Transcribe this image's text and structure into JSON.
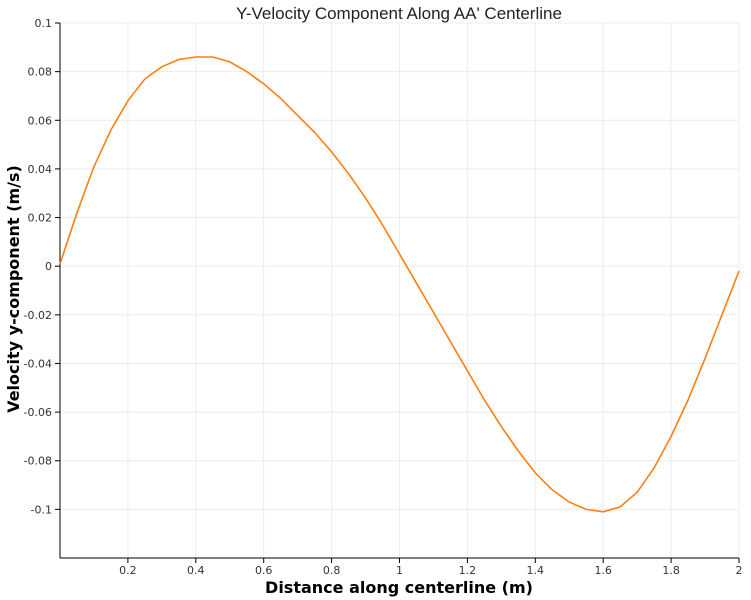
{
  "chart_data": {
    "type": "line",
    "title": "Y-Velocity Component Along AA' Centerline",
    "xlabel": "Distance along centerline (m)",
    "ylabel": "Velocity y-component (m/s)",
    "xlim": [
      0,
      2
    ],
    "ylim": [
      -0.12,
      0.1
    ],
    "xticks": [
      0.2,
      0.4,
      0.6,
      0.8,
      1,
      1.2,
      1.4,
      1.6,
      1.8,
      2
    ],
    "xtick_labels": [
      "0.2",
      "0.4",
      "0.6",
      "0.8",
      "1",
      "1.2",
      "1.4",
      "1.6",
      "1.8",
      "2"
    ],
    "yticks": [
      0.1,
      0.08,
      0.06,
      0.04,
      0.02,
      0,
      -0.02,
      -0.04,
      -0.06,
      -0.08,
      -0.1
    ],
    "ytick_labels": [
      "0.1",
      "0.08",
      "0.06",
      "0.04",
      "0.02",
      "0",
      "-0.02",
      "-0.04",
      "-0.06",
      "-0.08",
      "-0.1"
    ],
    "grid": true,
    "legend": "none",
    "series": [
      {
        "color": "#ff7f0e",
        "x": [
          0,
          0.05,
          0.1,
          0.15,
          0.2,
          0.25,
          0.3,
          0.35,
          0.4,
          0.45,
          0.5,
          0.55,
          0.6,
          0.65,
          0.7,
          0.75,
          0.8,
          0.85,
          0.9,
          0.95,
          1.0,
          1.05,
          1.1,
          1.15,
          1.2,
          1.25,
          1.3,
          1.35,
          1.4,
          1.45,
          1.5,
          1.55,
          1.6,
          1.65,
          1.7,
          1.75,
          1.8,
          1.85,
          1.9,
          1.95,
          2.0
        ],
        "y": [
          0.001,
          0.022,
          0.041,
          0.056,
          0.068,
          0.077,
          0.082,
          0.085,
          0.086,
          0.086,
          0.084,
          0.08,
          0.075,
          0.069,
          0.062,
          0.055,
          0.047,
          0.038,
          0.028,
          0.017,
          0.005,
          -0.007,
          -0.019,
          -0.031,
          -0.043,
          -0.055,
          -0.066,
          -0.076,
          -0.085,
          -0.092,
          -0.097,
          -0.1,
          -0.101,
          -0.099,
          -0.093,
          -0.083,
          -0.07,
          -0.055,
          -0.038,
          -0.02,
          -0.002
        ]
      }
    ]
  }
}
